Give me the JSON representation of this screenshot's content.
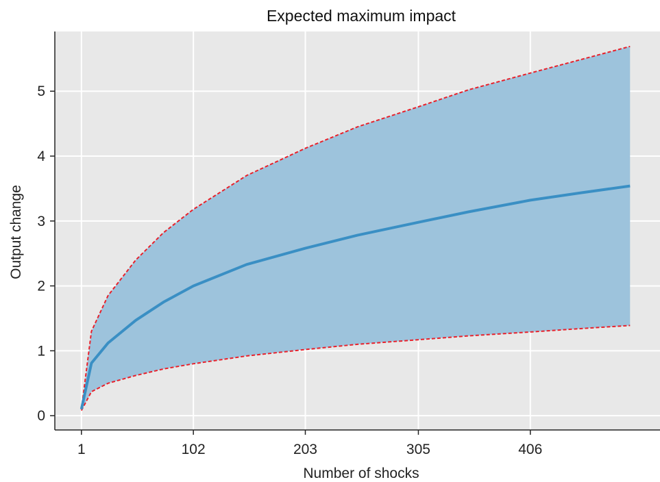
{
  "chart_data": {
    "type": "line",
    "title": "Expected maximum impact",
    "xlabel": "Number of shocks",
    "ylabel": "Output change",
    "xlim": [
      -23,
      523
    ],
    "ylim": [
      -0.22,
      5.92
    ],
    "x_ticks": [
      1,
      102,
      203,
      305,
      406
    ],
    "y_ticks": [
      0,
      1,
      2,
      3,
      4,
      5
    ],
    "grid": true,
    "legend": "none",
    "colors": {
      "panel": "#e8e8e8",
      "grid": "#ffffff",
      "band_fill": "#9dc3dc",
      "mean_line": "#3a8fc4",
      "bound_line": "#e8202a"
    },
    "series": [
      {
        "role": "mean",
        "x": [
          1,
          10,
          25,
          50,
          75,
          102,
          150,
          203,
          250,
          305,
          350,
          406,
          450,
          496
        ],
        "values": [
          0.1,
          0.81,
          1.12,
          1.47,
          1.75,
          2.0,
          2.33,
          2.58,
          2.78,
          2.98,
          3.14,
          3.32,
          3.43,
          3.54
        ]
      },
      {
        "role": "upper",
        "x": [
          1,
          10,
          25,
          50,
          75,
          102,
          150,
          203,
          250,
          305,
          350,
          406,
          450,
          496
        ],
        "values": [
          0.1,
          1.3,
          1.85,
          2.4,
          2.82,
          3.18,
          3.7,
          4.12,
          4.45,
          4.76,
          5.02,
          5.28,
          5.48,
          5.69
        ]
      },
      {
        "role": "lower",
        "x": [
          1,
          10,
          25,
          50,
          75,
          102,
          150,
          203,
          250,
          305,
          350,
          406,
          450,
          496
        ],
        "values": [
          0.08,
          0.37,
          0.5,
          0.62,
          0.72,
          0.8,
          0.92,
          1.02,
          1.1,
          1.17,
          1.23,
          1.29,
          1.34,
          1.39
        ]
      }
    ]
  }
}
